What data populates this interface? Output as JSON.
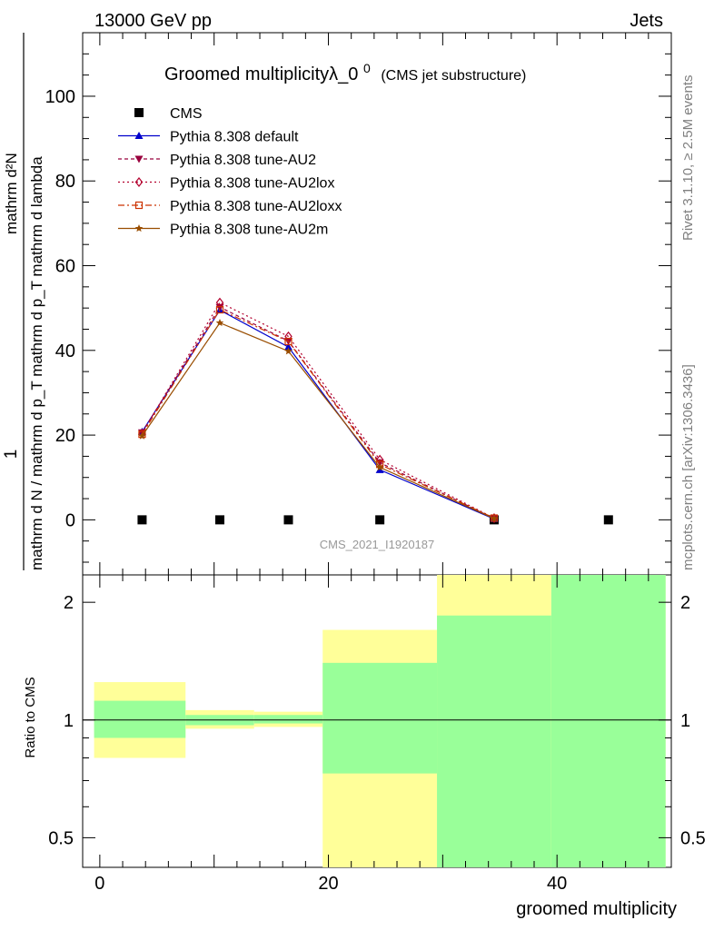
{
  "header": {
    "left": "13000 GeV pp",
    "right": "Jets"
  },
  "title": {
    "main": "Groomed multiplicityλ_0",
    "superscript": "0",
    "sub": "(CMS jet substructure)"
  },
  "side_labels": {
    "rivet": "Rivet 3.1.10, ≥ 2.5M events",
    "mcplots": "mcplots.cern.ch [arXiv:1306.3436]"
  },
  "watermark": "CMS_2021_I1920187",
  "ylabel_main": {
    "numerator": "1",
    "denominator": "mathrm d N / mathrm d p_T mathrm d p_T mathrm d lambda",
    "upper": "mathrm d²N",
    "upper_fraction_text": "mathrm d p_T mathrm d lambda"
  },
  "ylabel_ratio": "Ratio to CMS",
  "xlabel": "groomed multiplicity",
  "legend": [
    {
      "label": "CMS",
      "color": "#000000",
      "marker": "square",
      "dash": ""
    },
    {
      "label": "Pythia 8.308 default",
      "color": "#0000cc",
      "marker": "triangle-up",
      "dash": ""
    },
    {
      "label": "Pythia 8.308 tune-AU2",
      "color": "#99003d",
      "marker": "triangle-down",
      "dash": "4,3"
    },
    {
      "label": "Pythia 8.308 tune-AU2lox",
      "color": "#b3002d",
      "marker": "diamond",
      "dash": "2,3"
    },
    {
      "label": "Pythia 8.308 tune-AU2loxx",
      "color": "#cc3300",
      "marker": "square-open",
      "dash": "7,3,2,3"
    },
    {
      "label": "Pythia 8.308 tune-AU2m",
      "color": "#994d00",
      "marker": "star",
      "dash": ""
    }
  ],
  "chart_data": [
    {
      "type": "line",
      "title": "Groomed multiplicityλ_0^0 (CMS jet substructure)",
      "xlabel": "groomed multiplicity",
      "ylabel": "1 / (mathrm d N / mathrm d p_T mathrm d p_T mathrm d lambda) · mathrm d²N",
      "xlim": [
        -1.5,
        50
      ],
      "ylim": [
        -13,
        115
      ],
      "yticks": [
        0,
        20,
        40,
        60,
        80,
        100
      ],
      "series": [
        {
          "name": "CMS",
          "x": [
            3.7,
            10.5,
            16.5,
            24.5,
            34.5,
            44.5
          ],
          "y": [
            0,
            0,
            0,
            0,
            0,
            0
          ]
        },
        {
          "name": "Pythia 8.308 default",
          "x": [
            3.7,
            10.5,
            16.5,
            24.5,
            34.5
          ],
          "y": [
            20.8,
            49.5,
            40.8,
            11.8,
            0.2
          ]
        },
        {
          "name": "Pythia 8.308 tune-AU2",
          "x": [
            3.7,
            10.5,
            16.5,
            24.5,
            34.5
          ],
          "y": [
            20.6,
            50.2,
            42.2,
            13.5,
            0.3
          ]
        },
        {
          "name": "Pythia 8.308 tune-AU2lox",
          "x": [
            3.7,
            10.5,
            16.5,
            24.5,
            34.5
          ],
          "y": [
            20.4,
            51.3,
            43.3,
            14.2,
            0.4
          ]
        },
        {
          "name": "Pythia 8.308 tune-AU2loxx",
          "x": [
            3.7,
            10.5,
            16.5,
            24.5,
            34.5
          ],
          "y": [
            20.2,
            49.6,
            42.1,
            13.1,
            0.4
          ]
        },
        {
          "name": "Pythia 8.308 tune-AU2m",
          "x": [
            3.7,
            10.5,
            16.5,
            24.5,
            34.5
          ],
          "y": [
            19.8,
            46.5,
            39.8,
            12.4,
            0.3
          ]
        }
      ]
    },
    {
      "type": "area",
      "ylabel": "Ratio to CMS",
      "xlabel": "groomed multiplicity",
      "xlim": [
        -1.5,
        50
      ],
      "ylim": [
        0.42,
        2.35
      ],
      "ylog": true,
      "xticks": [
        0,
        20,
        40
      ],
      "yticks": [
        0.5,
        1,
        2
      ],
      "bins": [
        {
          "x0": -0.5,
          "x1": 7.5,
          "green": [
            0.9,
            1.12
          ],
          "yellow": [
            0.8,
            1.25
          ]
        },
        {
          "x0": 7.5,
          "x1": 13.5,
          "green": [
            0.97,
            1.03
          ],
          "yellow": [
            0.95,
            1.06
          ]
        },
        {
          "x0": 13.5,
          "x1": 19.5,
          "green": [
            0.98,
            1.03
          ],
          "yellow": [
            0.96,
            1.05
          ]
        },
        {
          "x0": 19.5,
          "x1": 29.5,
          "green": [
            0.73,
            1.4
          ],
          "yellow": [
            0.38,
            1.7
          ]
        },
        {
          "x0": 29.5,
          "x1": 39.5,
          "green": [
            0.38,
            1.85
          ],
          "yellow": [
            0.38,
            2.6
          ]
        },
        {
          "x0": 39.5,
          "x1": 49.5,
          "green": [
            0.38,
            2.6
          ],
          "yellow": [
            0.38,
            2.6
          ]
        }
      ]
    }
  ],
  "colors": {
    "green_band": "#99ff99",
    "yellow_band": "#ffff99",
    "cms": "#000000",
    "watermark": "#999999",
    "side_text": "#7f7f7f"
  }
}
